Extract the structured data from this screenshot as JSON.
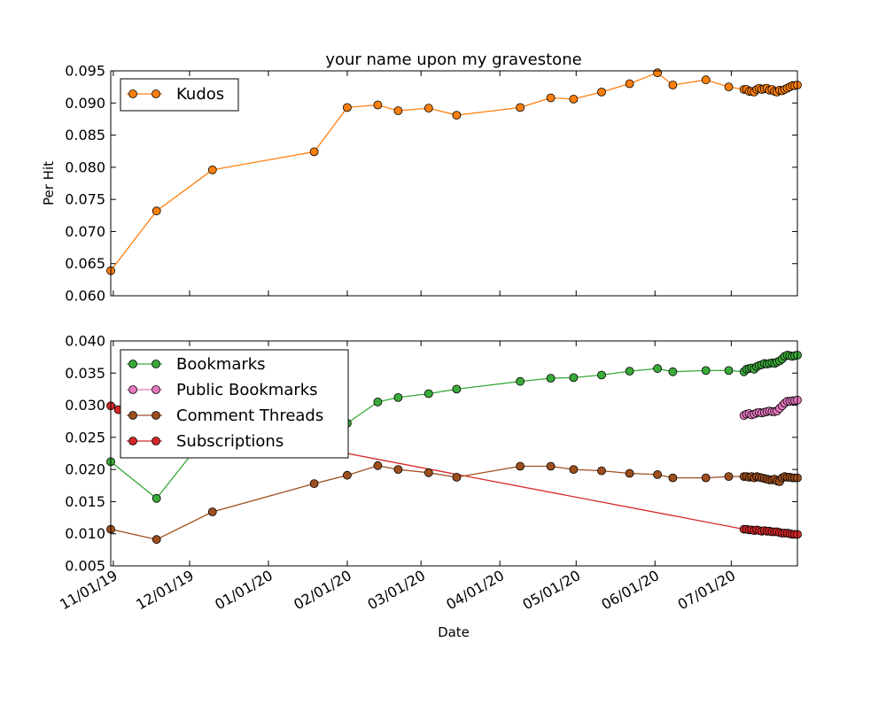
{
  "chart_data": [
    {
      "type": "line",
      "title": "your name upon my gravestone",
      "xlabel": "",
      "ylabel": "Per Hit",
      "ylim": [
        0.06,
        0.095
      ],
      "yticks": [
        "0.060",
        "0.065",
        "0.070",
        "0.075",
        "0.080",
        "0.085",
        "0.090",
        "0.095"
      ],
      "xlim": [
        "2019-10-31",
        "2020-07-27"
      ],
      "legend_position": "top-left",
      "grid": false,
      "series": [
        {
          "name": "Kudos",
          "color": "#ff7f0e",
          "points": [
            [
              "2019-10-31",
              0.0639
            ],
            [
              "2019-11-18",
              0.0732
            ],
            [
              "2019-12-10",
              0.0796
            ],
            [
              "2020-01-19",
              0.0824
            ],
            [
              "2020-02-01",
              0.0893
            ],
            [
              "2020-02-13",
              0.0897
            ],
            [
              "2020-02-21",
              0.0888
            ],
            [
              "2020-03-04",
              0.0892
            ],
            [
              "2020-03-15",
              0.0881
            ],
            [
              "2020-04-09",
              0.0893
            ],
            [
              "2020-04-21",
              0.0908
            ],
            [
              "2020-04-30",
              0.0906
            ],
            [
              "2020-05-11",
              0.0917
            ],
            [
              "2020-05-22",
              0.093
            ],
            [
              "2020-06-02",
              0.0947
            ],
            [
              "2020-06-08",
              0.0928
            ],
            [
              "2020-06-21",
              0.0936
            ],
            [
              "2020-06-30",
              0.0925
            ],
            [
              "2020-07-06",
              0.0921
            ],
            [
              "2020-07-07",
              0.0921
            ],
            [
              "2020-07-08",
              0.0918
            ],
            [
              "2020-07-09",
              0.0918
            ],
            [
              "2020-07-10",
              0.0917
            ],
            [
              "2020-07-11",
              0.0921
            ],
            [
              "2020-07-12",
              0.0923
            ],
            [
              "2020-07-13",
              0.0921
            ],
            [
              "2020-07-14",
              0.0922
            ],
            [
              "2020-07-15",
              0.0923
            ],
            [
              "2020-07-16",
              0.092
            ],
            [
              "2020-07-17",
              0.0921
            ],
            [
              "2020-07-18",
              0.0918
            ],
            [
              "2020-07-19",
              0.0917
            ],
            [
              "2020-07-20",
              0.092
            ],
            [
              "2020-07-21",
              0.0919
            ],
            [
              "2020-07-22",
              0.0921
            ],
            [
              "2020-07-23",
              0.0923
            ],
            [
              "2020-07-24",
              0.0925
            ],
            [
              "2020-07-25",
              0.0927
            ],
            [
              "2020-07-26",
              0.0927
            ],
            [
              "2020-07-27",
              0.0928
            ]
          ]
        }
      ]
    },
    {
      "type": "line",
      "title": "",
      "xlabel": "Date",
      "ylabel": "",
      "ylim": [
        0.005,
        0.04
      ],
      "yticks": [
        "0.005",
        "0.010",
        "0.015",
        "0.020",
        "0.025",
        "0.030",
        "0.035",
        "0.040"
      ],
      "xlim": [
        "2019-10-31",
        "2020-07-27"
      ],
      "xticks": [
        {
          "date": "2019-11-01",
          "label": "11/01/19"
        },
        {
          "date": "2019-12-01",
          "label": "12/01/19"
        },
        {
          "date": "2020-01-01",
          "label": "01/01/20"
        },
        {
          "date": "2020-02-01",
          "label": "02/01/20"
        },
        {
          "date": "2020-03-01",
          "label": "03/01/20"
        },
        {
          "date": "2020-04-01",
          "label": "04/01/20"
        },
        {
          "date": "2020-05-01",
          "label": "05/01/20"
        },
        {
          "date": "2020-06-01",
          "label": "06/01/20"
        },
        {
          "date": "2020-07-01",
          "label": "07/01/20"
        }
      ],
      "legend_position": "top-left",
      "grid": false,
      "series": [
        {
          "name": "Bookmarks",
          "color": "#3aaa3a",
          "points": [
            [
              "2019-10-31",
              0.0212
            ],
            [
              "2019-11-18",
              0.0155
            ],
            [
              "2019-12-02",
              0.0225
            ],
            [
              "2020-02-01",
              0.0272
            ],
            [
              "2020-02-13",
              0.0305
            ],
            [
              "2020-02-21",
              0.0312
            ],
            [
              "2020-03-04",
              0.0318
            ],
            [
              "2020-03-15",
              0.0325
            ],
            [
              "2020-04-09",
              0.0337
            ],
            [
              "2020-04-21",
              0.0342
            ],
            [
              "2020-04-30",
              0.0343
            ],
            [
              "2020-05-11",
              0.0347
            ],
            [
              "2020-05-22",
              0.0353
            ],
            [
              "2020-06-02",
              0.0357
            ],
            [
              "2020-06-08",
              0.0352
            ],
            [
              "2020-06-21",
              0.0354
            ],
            [
              "2020-06-30",
              0.0354
            ],
            [
              "2020-07-06",
              0.0352
            ],
            [
              "2020-07-07",
              0.0356
            ],
            [
              "2020-07-08",
              0.0357
            ],
            [
              "2020-07-09",
              0.0358
            ],
            [
              "2020-07-10",
              0.0356
            ],
            [
              "2020-07-11",
              0.036
            ],
            [
              "2020-07-12",
              0.0362
            ],
            [
              "2020-07-13",
              0.0363
            ],
            [
              "2020-07-14",
              0.0365
            ],
            [
              "2020-07-15",
              0.0364
            ],
            [
              "2020-07-16",
              0.0365
            ],
            [
              "2020-07-17",
              0.0366
            ],
            [
              "2020-07-18",
              0.0365
            ],
            [
              "2020-07-19",
              0.0367
            ],
            [
              "2020-07-20",
              0.0369
            ],
            [
              "2020-07-21",
              0.0372
            ],
            [
              "2020-07-22",
              0.0376
            ],
            [
              "2020-07-23",
              0.0378
            ],
            [
              "2020-07-24",
              0.0377
            ],
            [
              "2020-07-25",
              0.0376
            ],
            [
              "2020-07-26",
              0.0377
            ],
            [
              "2020-07-27",
              0.0378
            ]
          ]
        },
        {
          "name": "Public Bookmarks",
          "color": "#e778c0",
          "points": [
            [
              "2020-07-06",
              0.0284
            ],
            [
              "2020-07-07",
              0.0286
            ],
            [
              "2020-07-08",
              0.0287
            ],
            [
              "2020-07-09",
              0.0285
            ],
            [
              "2020-07-10",
              0.0286
            ],
            [
              "2020-07-11",
              0.0288
            ],
            [
              "2020-07-12",
              0.0289
            ],
            [
              "2020-07-13",
              0.0288
            ],
            [
              "2020-07-14",
              0.0289
            ],
            [
              "2020-07-15",
              0.029
            ],
            [
              "2020-07-16",
              0.0291
            ],
            [
              "2020-07-17",
              0.029
            ],
            [
              "2020-07-18",
              0.029
            ],
            [
              "2020-07-19",
              0.0291
            ],
            [
              "2020-07-20",
              0.0295
            ],
            [
              "2020-07-21",
              0.0299
            ],
            [
              "2020-07-22",
              0.0303
            ],
            [
              "2020-07-23",
              0.0306
            ],
            [
              "2020-07-24",
              0.0306
            ],
            [
              "2020-07-25",
              0.0307
            ],
            [
              "2020-07-26",
              0.0307
            ],
            [
              "2020-07-27",
              0.0308
            ]
          ]
        },
        {
          "name": "Comment Threads",
          "color": "#9e4f1e",
          "points": [
            [
              "2019-10-31",
              0.0107
            ],
            [
              "2019-11-18",
              0.0091
            ],
            [
              "2019-12-10",
              0.0134
            ],
            [
              "2020-01-19",
              0.0178
            ],
            [
              "2020-02-01",
              0.0191
            ],
            [
              "2020-02-13",
              0.0206
            ],
            [
              "2020-02-21",
              0.02
            ],
            [
              "2020-03-04",
              0.0195
            ],
            [
              "2020-03-15",
              0.0188
            ],
            [
              "2020-04-09",
              0.0205
            ],
            [
              "2020-04-21",
              0.0205
            ],
            [
              "2020-04-30",
              0.02
            ],
            [
              "2020-05-11",
              0.0198
            ],
            [
              "2020-05-22",
              0.0194
            ],
            [
              "2020-06-02",
              0.0192
            ],
            [
              "2020-06-08",
              0.0187
            ],
            [
              "2020-06-21",
              0.0187
            ],
            [
              "2020-06-30",
              0.0189
            ],
            [
              "2020-07-06",
              0.0189
            ],
            [
              "2020-07-07",
              0.0189
            ],
            [
              "2020-07-08",
              0.0188
            ],
            [
              "2020-07-09",
              0.0189
            ],
            [
              "2020-07-10",
              0.0187
            ],
            [
              "2020-07-11",
              0.0189
            ],
            [
              "2020-07-12",
              0.0188
            ],
            [
              "2020-07-13",
              0.0187
            ],
            [
              "2020-07-14",
              0.0186
            ],
            [
              "2020-07-15",
              0.0185
            ],
            [
              "2020-07-16",
              0.0184
            ],
            [
              "2020-07-17",
              0.0184
            ],
            [
              "2020-07-18",
              0.0185
            ],
            [
              "2020-07-19",
              0.0182
            ],
            [
              "2020-07-20",
              0.0181
            ],
            [
              "2020-07-21",
              0.0187
            ],
            [
              "2020-07-22",
              0.0189
            ],
            [
              "2020-07-23",
              0.0188
            ],
            [
              "2020-07-24",
              0.0188
            ],
            [
              "2020-07-25",
              0.0187
            ],
            [
              "2020-07-26",
              0.0187
            ],
            [
              "2020-07-27",
              0.0187
            ]
          ]
        },
        {
          "name": "Subscriptions",
          "color": "#d62728",
          "points": [
            [
              "2019-10-31",
              0.0299
            ],
            [
              "2019-11-03",
              0.0293
            ],
            [
              "2020-07-06",
              0.0107
            ],
            [
              "2020-07-07",
              0.0107
            ],
            [
              "2020-07-08",
              0.0106
            ],
            [
              "2020-07-09",
              0.0106
            ],
            [
              "2020-07-10",
              0.0105
            ],
            [
              "2020-07-11",
              0.0106
            ],
            [
              "2020-07-12",
              0.0105
            ],
            [
              "2020-07-13",
              0.0104
            ],
            [
              "2020-07-14",
              0.0105
            ],
            [
              "2020-07-15",
              0.0104
            ],
            [
              "2020-07-16",
              0.0104
            ],
            [
              "2020-07-17",
              0.0103
            ],
            [
              "2020-07-18",
              0.0103
            ],
            [
              "2020-07-19",
              0.0103
            ],
            [
              "2020-07-20",
              0.0102
            ],
            [
              "2020-07-21",
              0.0101
            ],
            [
              "2020-07-22",
              0.0101
            ],
            [
              "2020-07-23",
              0.0101
            ],
            [
              "2020-07-24",
              0.01
            ],
            [
              "2020-07-25",
              0.0099
            ],
            [
              "2020-07-26",
              0.0099
            ],
            [
              "2020-07-27",
              0.0099
            ]
          ]
        }
      ]
    }
  ]
}
